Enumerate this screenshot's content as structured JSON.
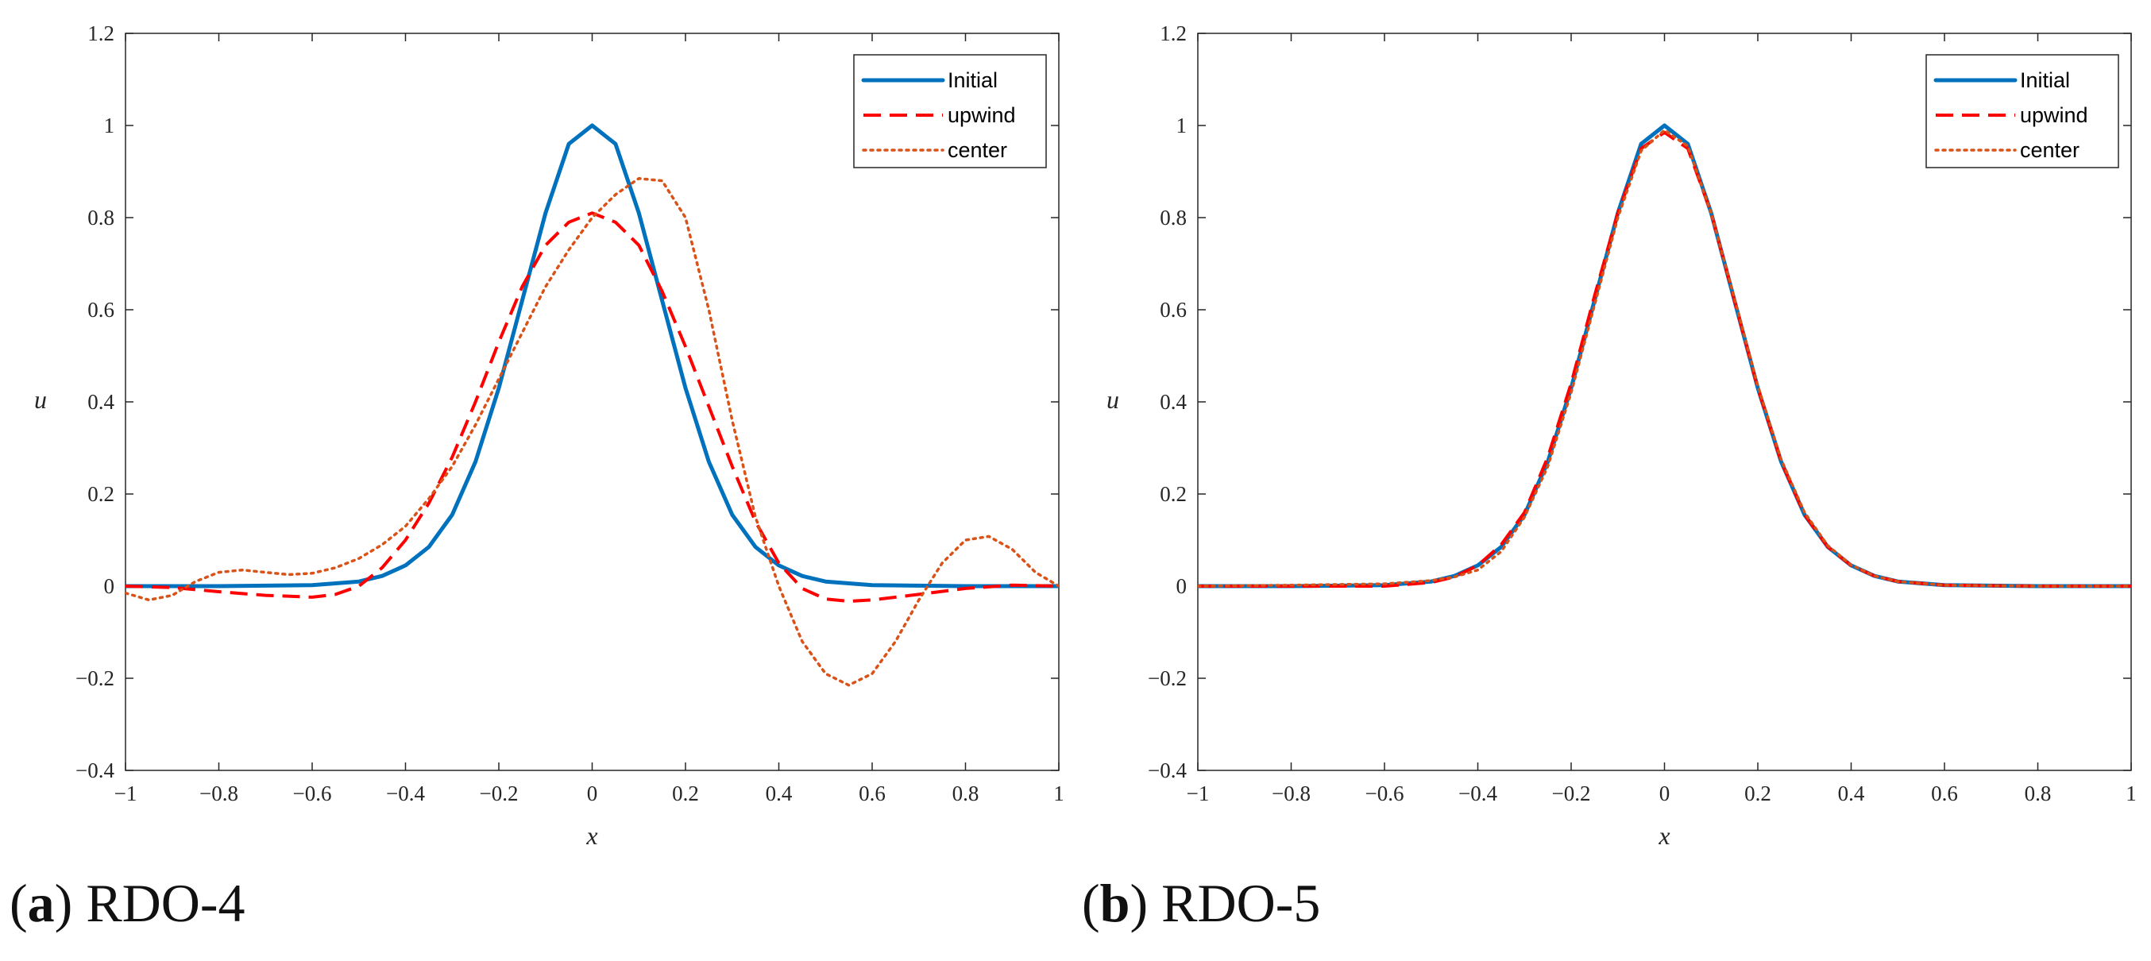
{
  "chart_data": [
    {
      "type": "line",
      "caption_label": "a",
      "caption_text": "RDO-4",
      "xlabel": "x",
      "ylabel": "u",
      "xlim": [
        -1,
        1
      ],
      "ylim": [
        -0.4,
        1.2
      ],
      "xticks": [
        -1,
        -0.8,
        -0.6,
        -0.4,
        -0.2,
        0,
        0.2,
        0.4,
        0.6,
        0.8,
        1
      ],
      "xtick_labels": [
        "−1",
        "−0.8",
        "−0.6",
        "−0.4",
        "−0.2",
        "0",
        "0.2",
        "0.4",
        "0.6",
        "0.8",
        "1"
      ],
      "yticks": [
        -0.4,
        -0.2,
        0,
        0.2,
        0.4,
        0.6,
        0.8,
        1,
        1.2
      ],
      "ytick_labels": [
        "−0.4",
        "−0.2",
        "0",
        "0.2",
        "0.4",
        "0.6",
        "0.8",
        "1",
        "1.2"
      ],
      "legend_position": "top-right",
      "series": [
        {
          "name": "Initial",
          "color": "#0072BD",
          "style": "solid",
          "x": [
            -1,
            -0.8,
            -0.6,
            -0.5,
            -0.45,
            -0.4,
            -0.35,
            -0.3,
            -0.25,
            -0.2,
            -0.15,
            -0.1,
            -0.05,
            0,
            0.05,
            0.1,
            0.15,
            0.2,
            0.25,
            0.3,
            0.35,
            0.4,
            0.45,
            0.5,
            0.6,
            0.8,
            1
          ],
          "y": [
            0,
            0,
            0.002,
            0.01,
            0.022,
            0.045,
            0.085,
            0.155,
            0.27,
            0.43,
            0.62,
            0.81,
            0.96,
            1.0,
            0.96,
            0.81,
            0.62,
            0.43,
            0.27,
            0.155,
            0.085,
            0.045,
            0.022,
            0.01,
            0.002,
            0,
            0
          ]
        },
        {
          "name": "upwind",
          "color": "#FF0000",
          "style": "dashed",
          "x": [
            -1,
            -0.9,
            -0.8,
            -0.7,
            -0.6,
            -0.55,
            -0.5,
            -0.45,
            -0.4,
            -0.35,
            -0.3,
            -0.25,
            -0.2,
            -0.15,
            -0.1,
            -0.05,
            0,
            0.05,
            0.1,
            0.15,
            0.2,
            0.25,
            0.3,
            0.35,
            0.4,
            0.45,
            0.5,
            0.55,
            0.6,
            0.7,
            0.8,
            0.9,
            1
          ],
          "y": [
            0,
            -0.003,
            -0.012,
            -0.02,
            -0.024,
            -0.018,
            0.0,
            0.04,
            0.1,
            0.18,
            0.28,
            0.4,
            0.53,
            0.65,
            0.74,
            0.79,
            0.81,
            0.79,
            0.74,
            0.64,
            0.52,
            0.39,
            0.26,
            0.14,
            0.05,
            -0.005,
            -0.028,
            -0.033,
            -0.03,
            -0.018,
            -0.005,
            0.002,
            0
          ]
        },
        {
          "name": "center",
          "color": "#D95319",
          "style": "dotted",
          "x": [
            -1,
            -0.95,
            -0.9,
            -0.85,
            -0.8,
            -0.75,
            -0.7,
            -0.65,
            -0.6,
            -0.55,
            -0.5,
            -0.45,
            -0.4,
            -0.35,
            -0.3,
            -0.25,
            -0.2,
            -0.15,
            -0.1,
            -0.05,
            0,
            0.05,
            0.1,
            0.15,
            0.2,
            0.25,
            0.3,
            0.35,
            0.4,
            0.45,
            0.5,
            0.55,
            0.6,
            0.65,
            0.7,
            0.75,
            0.8,
            0.85,
            0.9,
            0.95,
            1
          ],
          "y": [
            -0.015,
            -0.03,
            -0.02,
            0.01,
            0.03,
            0.035,
            0.03,
            0.025,
            0.028,
            0.04,
            0.06,
            0.09,
            0.13,
            0.19,
            0.26,
            0.35,
            0.45,
            0.55,
            0.65,
            0.73,
            0.8,
            0.85,
            0.885,
            0.88,
            0.8,
            0.6,
            0.36,
            0.15,
            0.0,
            -0.12,
            -0.19,
            -0.215,
            -0.19,
            -0.12,
            -0.03,
            0.05,
            0.1,
            0.108,
            0.08,
            0.03,
            0.0
          ]
        }
      ]
    },
    {
      "type": "line",
      "caption_label": "b",
      "caption_text": "RDO-5",
      "xlabel": "x",
      "ylabel": "u",
      "xlim": [
        -1,
        1
      ],
      "ylim": [
        -0.4,
        1.2
      ],
      "xticks": [
        -1,
        -0.8,
        -0.6,
        -0.4,
        -0.2,
        0,
        0.2,
        0.4,
        0.6,
        0.8,
        1
      ],
      "xtick_labels": [
        "−1",
        "−0.8",
        "−0.6",
        "−0.4",
        "−0.2",
        "0",
        "0.2",
        "0.4",
        "0.6",
        "0.8",
        "1"
      ],
      "yticks": [
        -0.4,
        -0.2,
        0,
        0.2,
        0.4,
        0.6,
        0.8,
        1,
        1.2
      ],
      "ytick_labels": [
        "−0.4",
        "−0.2",
        "0",
        "0.2",
        "0.4",
        "0.6",
        "0.8",
        "1",
        "1.2"
      ],
      "legend_position": "top-right",
      "series": [
        {
          "name": "Initial",
          "color": "#0072BD",
          "style": "solid",
          "x": [
            -1,
            -0.8,
            -0.6,
            -0.5,
            -0.45,
            -0.4,
            -0.35,
            -0.3,
            -0.25,
            -0.2,
            -0.15,
            -0.1,
            -0.05,
            0,
            0.05,
            0.1,
            0.15,
            0.2,
            0.25,
            0.3,
            0.35,
            0.4,
            0.45,
            0.5,
            0.6,
            0.8,
            1
          ],
          "y": [
            0,
            0,
            0.002,
            0.01,
            0.022,
            0.045,
            0.085,
            0.155,
            0.27,
            0.43,
            0.62,
            0.81,
            0.96,
            1.0,
            0.96,
            0.81,
            0.62,
            0.43,
            0.27,
            0.155,
            0.085,
            0.045,
            0.022,
            0.01,
            0.002,
            0,
            0
          ]
        },
        {
          "name": "upwind",
          "color": "#FF0000",
          "style": "dashed",
          "x": [
            -1,
            -0.8,
            -0.6,
            -0.5,
            -0.45,
            -0.4,
            -0.35,
            -0.3,
            -0.25,
            -0.2,
            -0.15,
            -0.1,
            -0.05,
            0,
            0.05,
            0.1,
            0.15,
            0.2,
            0.25,
            0.3,
            0.35,
            0.4,
            0.45,
            0.5,
            0.6,
            0.8,
            1
          ],
          "y": [
            0,
            0,
            0.0,
            0.008,
            0.02,
            0.045,
            0.09,
            0.16,
            0.28,
            0.44,
            0.63,
            0.81,
            0.95,
            0.985,
            0.95,
            0.81,
            0.62,
            0.43,
            0.27,
            0.155,
            0.085,
            0.045,
            0.022,
            0.01,
            0.002,
            0,
            0
          ]
        },
        {
          "name": "center",
          "color": "#D95319",
          "style": "dotted",
          "x": [
            -1,
            -0.8,
            -0.6,
            -0.5,
            -0.45,
            -0.4,
            -0.35,
            -0.3,
            -0.25,
            -0.2,
            -0.15,
            -0.1,
            -0.05,
            0,
            0.05,
            0.1,
            0.15,
            0.2,
            0.25,
            0.3,
            0.35,
            0.4,
            0.45,
            0.5,
            0.6,
            0.8,
            1
          ],
          "y": [
            0,
            0.002,
            0.005,
            0.012,
            0.02,
            0.035,
            0.075,
            0.15,
            0.26,
            0.42,
            0.61,
            0.8,
            0.945,
            0.99,
            0.955,
            0.81,
            0.625,
            0.435,
            0.275,
            0.16,
            0.088,
            0.046,
            0.022,
            0.01,
            0.002,
            0,
            0
          ]
        }
      ]
    }
  ]
}
